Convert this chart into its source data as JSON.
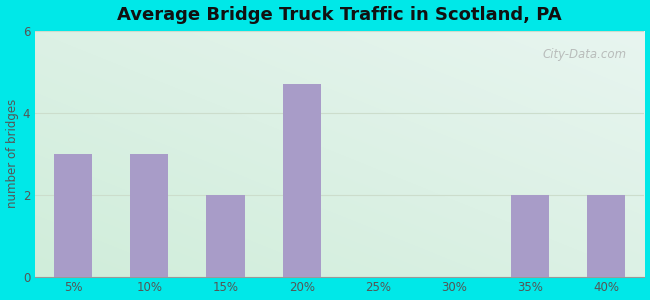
{
  "title": "Average Bridge Truck Traffic in Scotland, PA",
  "categories": [
    "5%",
    "10%",
    "15%",
    "20%",
    "25%",
    "30%",
    "35%",
    "40%"
  ],
  "values": [
    3.0,
    3.0,
    2.0,
    4.7,
    0,
    0,
    2.0,
    2.0
  ],
  "bar_color": "#a89cc8",
  "ylabel": "number of bridges",
  "ylim": [
    0,
    6
  ],
  "yticks": [
    0,
    2,
    4,
    6
  ],
  "background_color": "#00e8e8",
  "plot_bg_top_right": "#e8f5f0",
  "plot_bg_bottom_left": "#d0edda",
  "title_fontsize": 13,
  "axis_label_color": "#555555",
  "tick_color": "#555555",
  "watermark": "City-Data.com",
  "grid_color": "#ccddcc",
  "bar_width": 0.5
}
